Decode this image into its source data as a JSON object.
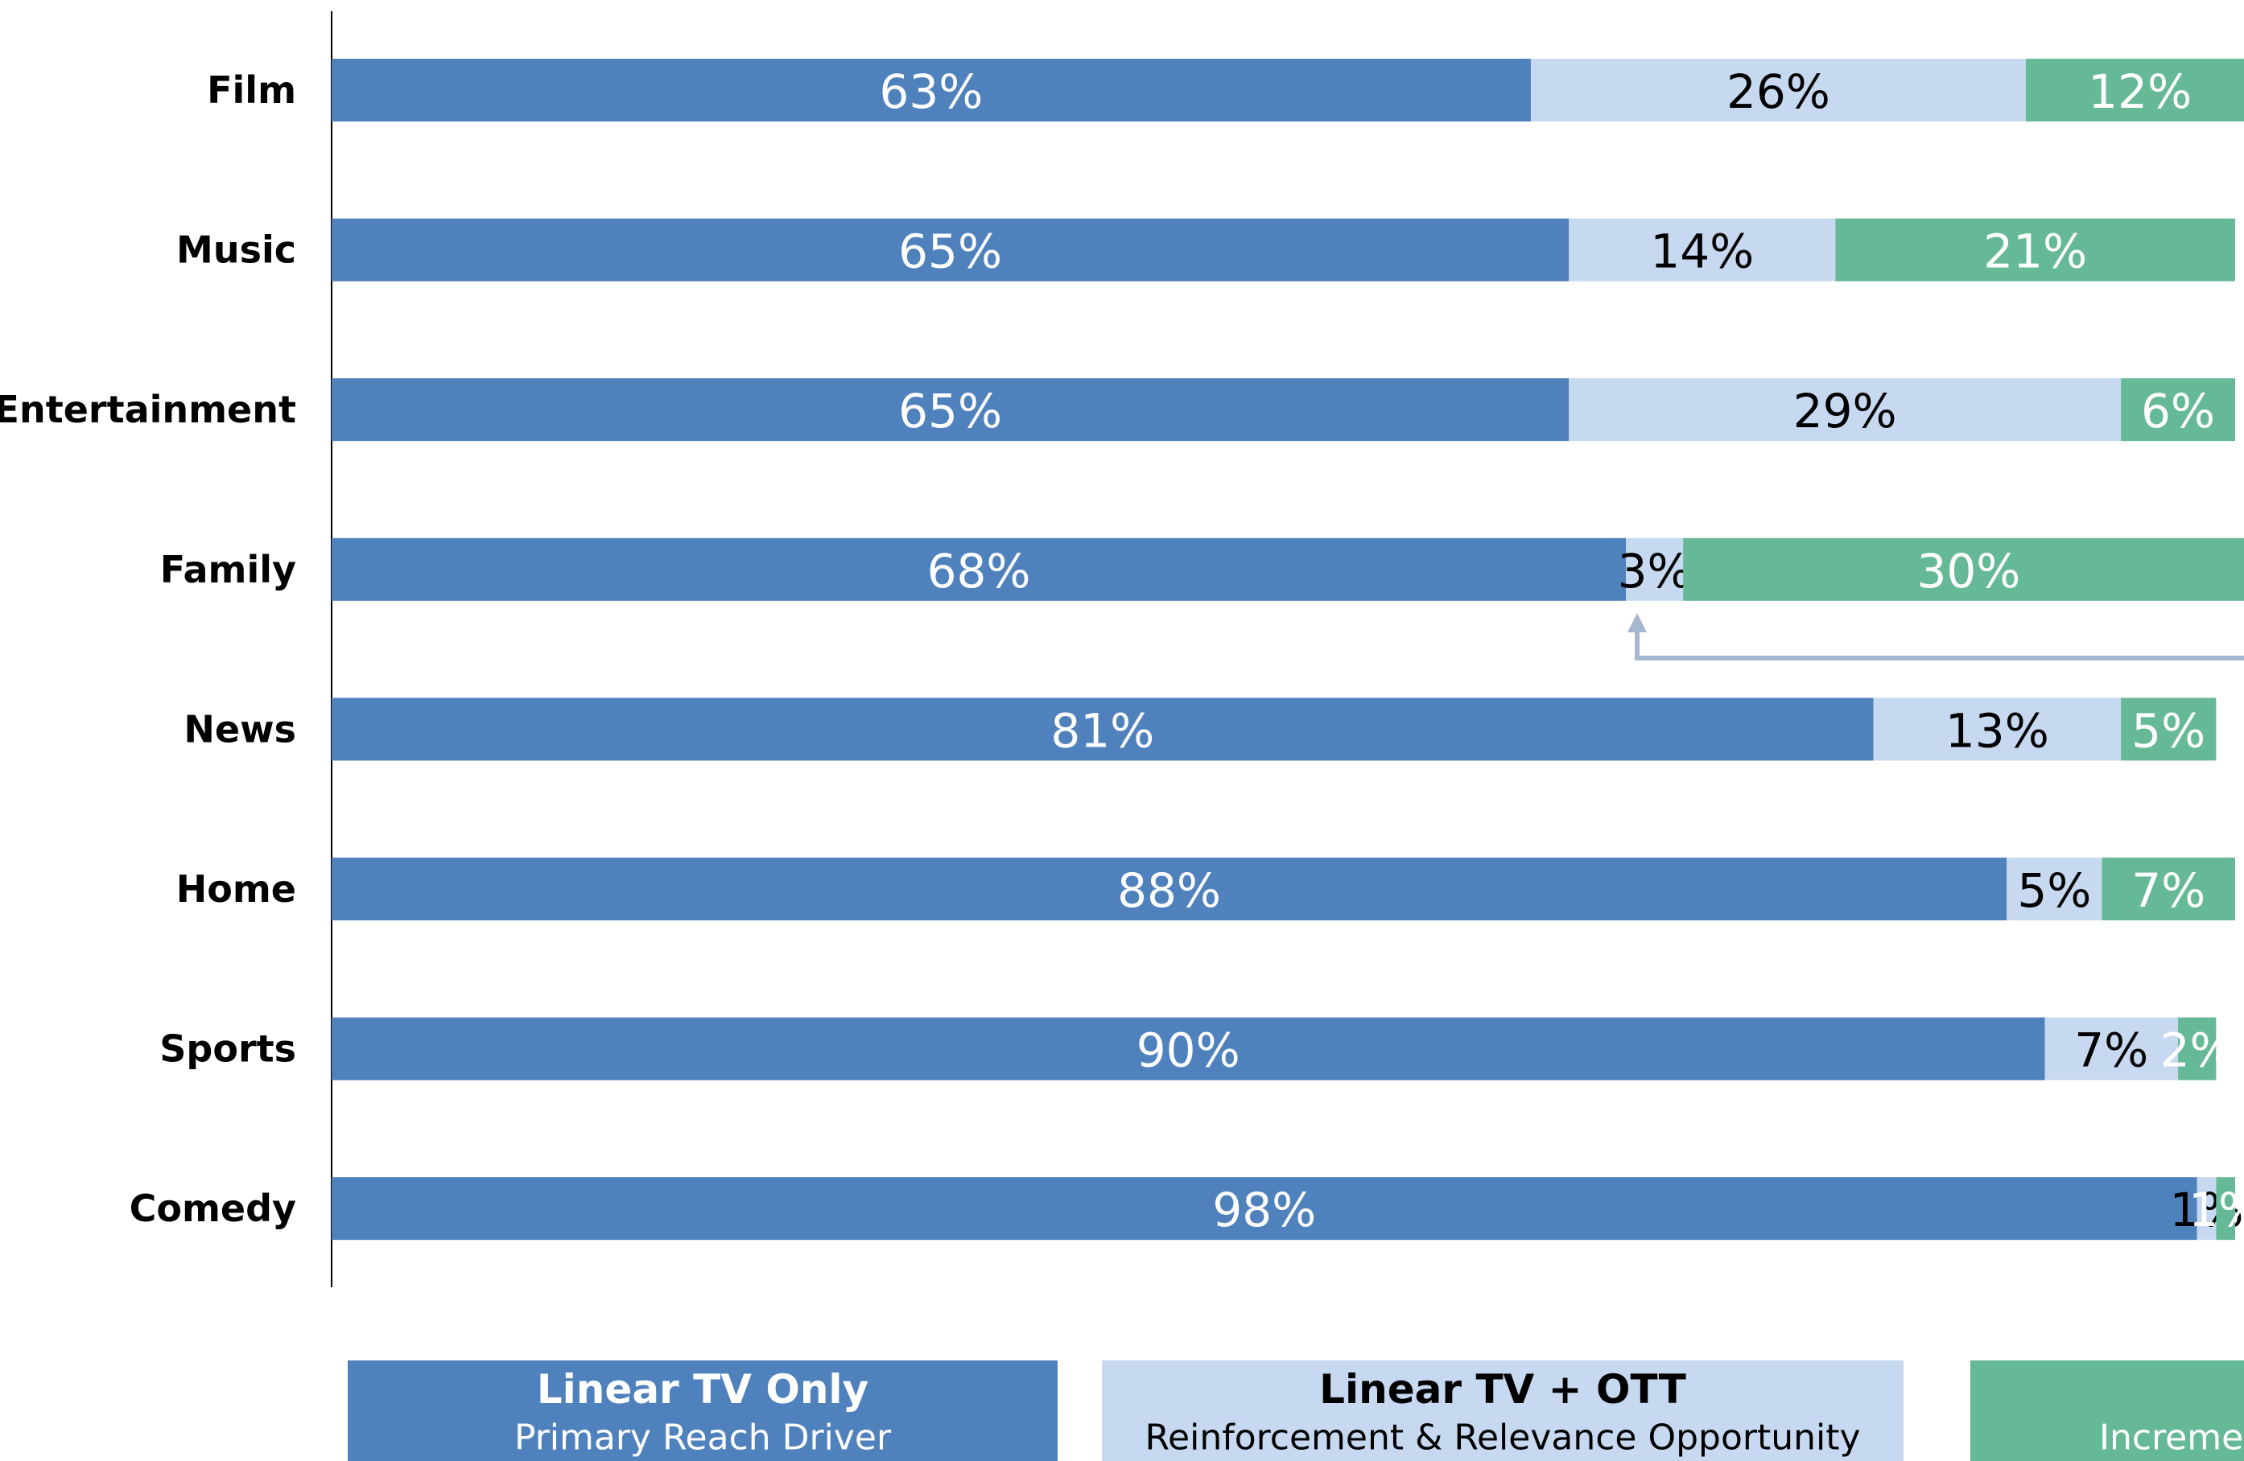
{
  "chart_data": {
    "type": "stacked-bar-horizontal",
    "categories": [
      "Film",
      "Music",
      "Entertainment",
      "Family",
      "News",
      "Home",
      "Sports",
      "Comedy"
    ],
    "series": [
      {
        "name": "Linear TV Only",
        "color": "#4f81bd",
        "values": [
          63,
          65,
          65,
          68,
          81,
          88,
          90,
          98
        ],
        "value_labels": [
          "63%",
          "65%",
          "65%",
          "68%",
          "81%",
          "88%",
          "90%",
          "98%"
        ]
      },
      {
        "name": "Linear TV + OTT",
        "color": "#c6d9f1",
        "values": [
          26,
          14,
          29,
          3,
          13,
          5,
          7,
          1
        ],
        "value_labels": [
          "26%",
          "14%",
          "29%",
          "3%",
          "13%",
          "5%",
          "7%",
          "1%"
        ]
      },
      {
        "color": "#66b997",
        "values": [
          12,
          21,
          6,
          30,
          5,
          7,
          2,
          1
        ],
        "value_labels": [
          "12%",
          "21%",
          "6%",
          "30%",
          "5%",
          "7%",
          "2%",
          "1%"
        ]
      }
    ],
    "legend_subtitles": [
      "Primary Reach Driver",
      "Reinforcement & Relevance Opportunity",
      "Increme"
    ],
    "xlim": [
      0,
      100
    ]
  }
}
